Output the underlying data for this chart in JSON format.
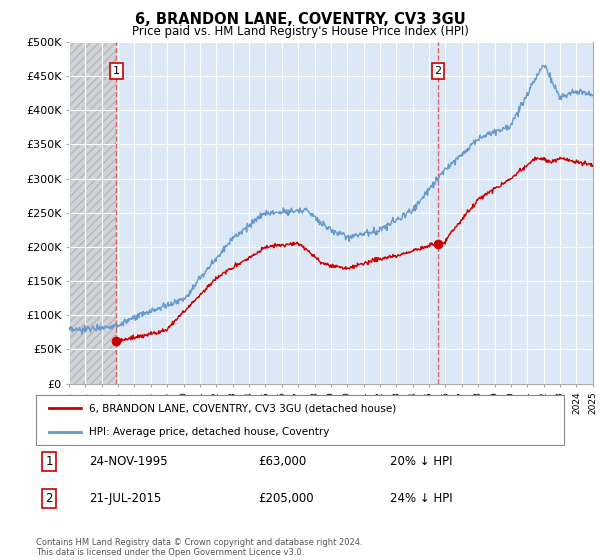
{
  "title": "6, BRANDON LANE, COVENTRY, CV3 3GU",
  "subtitle": "Price paid vs. HM Land Registry's House Price Index (HPI)",
  "ylim": [
    0,
    500000
  ],
  "yticks": [
    0,
    50000,
    100000,
    150000,
    200000,
    250000,
    300000,
    350000,
    400000,
    450000,
    500000
  ],
  "ytick_labels": [
    "£0",
    "£50K",
    "£100K",
    "£150K",
    "£200K",
    "£250K",
    "£300K",
    "£350K",
    "£400K",
    "£450K",
    "£500K"
  ],
  "background_color": "#ffffff",
  "plot_bg_color": "#dce8f5",
  "hatch_bg_color": "#c8c8c8",
  "grid_color": "#ffffff",
  "sale1_date_num": 1995.9,
  "sale1_price": 63000,
  "sale1_label": "1",
  "sale2_date_num": 2015.55,
  "sale2_price": 205000,
  "sale2_label": "2",
  "line_color_red": "#cc0000",
  "line_color_blue": "#6699cc",
  "marker_color": "#cc0000",
  "vline_color": "#e06060",
  "legend_label_red": "6, BRANDON LANE, COVENTRY, CV3 3GU (detached house)",
  "legend_label_blue": "HPI: Average price, detached house, Coventry",
  "annotation1_date": "24-NOV-1995",
  "annotation1_price": "£63,000",
  "annotation1_hpi": "20% ↓ HPI",
  "annotation2_date": "21-JUL-2015",
  "annotation2_price": "£205,000",
  "annotation2_hpi": "24% ↓ HPI",
  "footer": "Contains HM Land Registry data © Crown copyright and database right 2024.\nThis data is licensed under the Open Government Licence v3.0.",
  "xmin": 1993,
  "xmax": 2025,
  "hatch_xmax": 1995.9
}
